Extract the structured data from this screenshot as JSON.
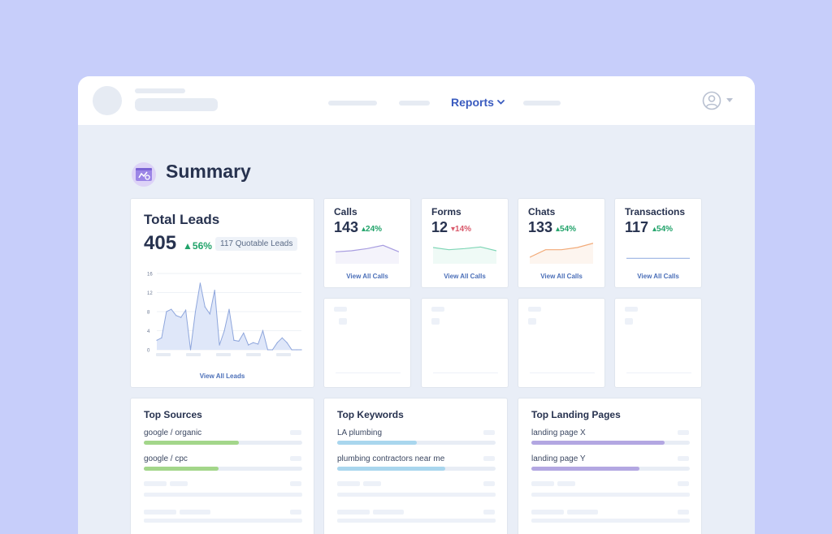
{
  "nav": {
    "reports_label": "Reports"
  },
  "page": {
    "title": "Summary"
  },
  "total_leads": {
    "title": "Total Leads",
    "value": "405",
    "delta": "56%",
    "badge": "117 Quotable Leads",
    "link": "View All Leads",
    "chart_data": {
      "type": "area",
      "y_ticks": [
        "16",
        "12",
        "8",
        "4",
        "0"
      ],
      "ylim": [
        0,
        16
      ],
      "values": [
        2,
        2.5,
        8,
        8.5,
        7.2,
        6.8,
        8.3,
        0,
        8,
        14,
        9,
        7.5,
        12.5,
        1,
        4,
        8.5,
        2,
        1.8,
        3.5,
        1,
        1.5,
        1.2,
        4,
        0,
        0,
        1.5,
        2.5,
        1.5,
        0,
        0,
        0
      ]
    }
  },
  "metrics": [
    {
      "title": "Calls",
      "value": "143",
      "delta": "24%",
      "direction": "up",
      "link": "View All Calls",
      "color": "#a89de0",
      "trend": [
        2.2,
        2.4,
        2.8,
        3.4,
        2.2
      ]
    },
    {
      "title": "Forms",
      "value": "12",
      "delta": "14%",
      "direction": "down",
      "link": "View All Calls",
      "color": "#7fd6b6",
      "trend": [
        3,
        2.6,
        2.8,
        3.1,
        2.4
      ]
    },
    {
      "title": "Chats",
      "value": "133",
      "delta": "54%",
      "direction": "up",
      "link": "View All Calls",
      "color": "#f2aa78",
      "trend": [
        1.2,
        2.6,
        2.6,
        3.0,
        3.8
      ]
    },
    {
      "title": "Transactions",
      "value": "117",
      "delta": "54%",
      "direction": "up",
      "link": "View All Calls",
      "color": "#9ab2e2",
      "trend": [
        1,
        1,
        1,
        1,
        1
      ]
    }
  ],
  "lists": [
    {
      "title": "Top Sources",
      "color": "#a3d68a",
      "items": [
        {
          "label": "google / organic",
          "fraction": 0.6
        },
        {
          "label": "google / cpc",
          "fraction": 0.47
        }
      ]
    },
    {
      "title": "Top Keywords",
      "color": "#a9d6ee",
      "items": [
        {
          "label": "LA plumbing",
          "fraction": 0.5
        },
        {
          "label": "plumbing contractors near me",
          "fraction": 0.68
        }
      ]
    },
    {
      "title": "Top Landing Pages",
      "color": "#b3a7e2",
      "items": [
        {
          "label": "landing page X",
          "fraction": 0.84
        },
        {
          "label": "landing page Y",
          "fraction": 0.68
        }
      ]
    }
  ],
  "colors": {
    "background": "#c7cefa",
    "accent": "#3a5bbf",
    "positive": "#21a36a",
    "negative": "#d9586a"
  }
}
